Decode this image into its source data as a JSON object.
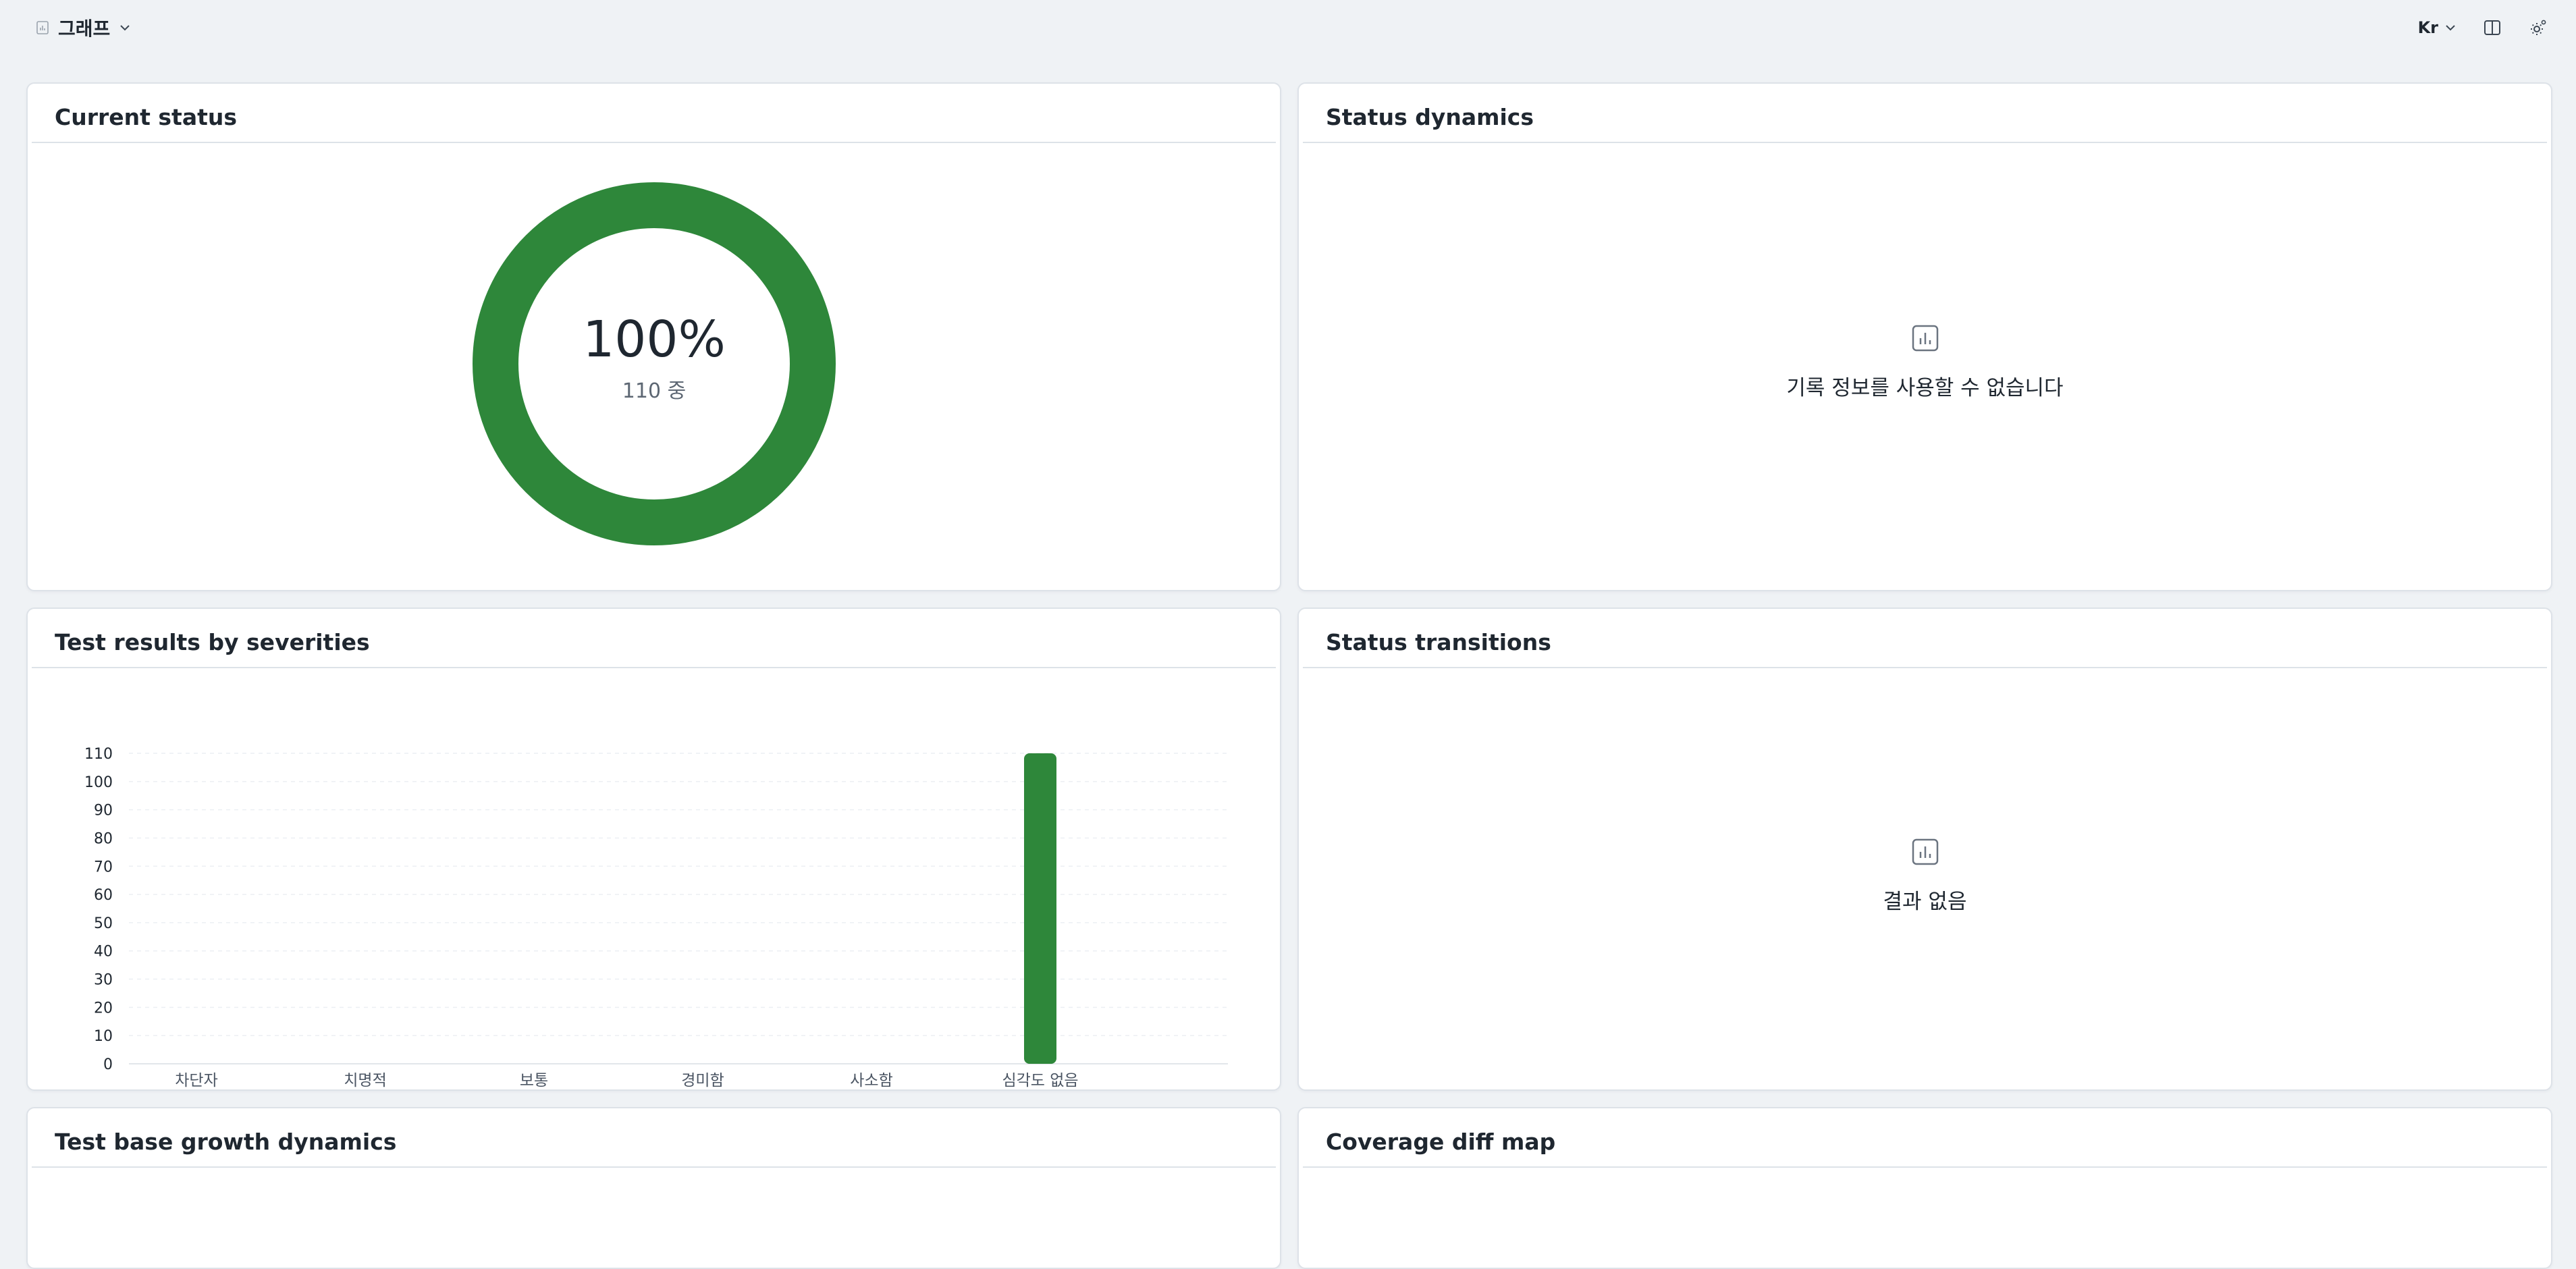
{
  "topbar": {
    "selector_label": "그래프",
    "selector_icon": "chart-file-icon",
    "language": "Kr",
    "layout_icon": "split-view-icon",
    "settings_icon": "gear-icon"
  },
  "cards": {
    "current_status": {
      "title": "Current status",
      "percent": "100%",
      "subtitle": "110 중",
      "value": 110,
      "total": 110,
      "color": "#2e873a"
    },
    "status_dynamics": {
      "title": "Status dynamics",
      "empty_icon": "bar-chart-icon",
      "empty_text": "기록 정보를 사용할 수 없습니다"
    },
    "severities": {
      "title": "Test results by severities"
    },
    "status_transitions": {
      "title": "Status transitions",
      "empty_icon": "bar-chart-icon",
      "empty_text": "결과 없음"
    },
    "test_base_growth": {
      "title": "Test base growth dynamics"
    },
    "coverage_diff": {
      "title": "Coverage diff map"
    }
  },
  "chart_data": {
    "type": "bar",
    "title": "",
    "xlabel": "",
    "ylabel": "",
    "categories": [
      "차단자",
      "치명적",
      "보통",
      "경미함",
      "사소함",
      "심각도 없음"
    ],
    "values": [
      0,
      0,
      0,
      0,
      0,
      110
    ],
    "ylim": [
      0,
      110
    ],
    "yticks": [
      0,
      10,
      20,
      30,
      40,
      50,
      60,
      70,
      80,
      90,
      100,
      110
    ],
    "grid": true,
    "bar_color": "#2e873a"
  }
}
